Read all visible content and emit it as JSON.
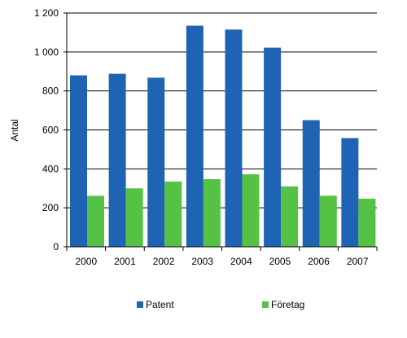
{
  "chart_data": {
    "type": "bar",
    "title": "",
    "xlabel": "",
    "ylabel": "Antal",
    "categories": [
      "2000",
      "2001",
      "2002",
      "2003",
      "2004",
      "2005",
      "2006",
      "2007"
    ],
    "series": [
      {
        "name": "Patent",
        "color": "#1f63b5",
        "values": [
          880,
          888,
          868,
          1135,
          1115,
          1022,
          650,
          558
        ]
      },
      {
        "name": "Företag",
        "color": "#55c145",
        "values": [
          262,
          300,
          335,
          347,
          372,
          310,
          262,
          247
        ]
      }
    ],
    "ylim": [
      0,
      1200
    ],
    "yticks": [
      0,
      200,
      400,
      600,
      800,
      1000,
      1200
    ],
    "ytick_labels": [
      "0",
      "200",
      "400",
      "600",
      "800",
      "1 000",
      "1 200"
    ],
    "grid": true,
    "legend_position": "bottom"
  }
}
